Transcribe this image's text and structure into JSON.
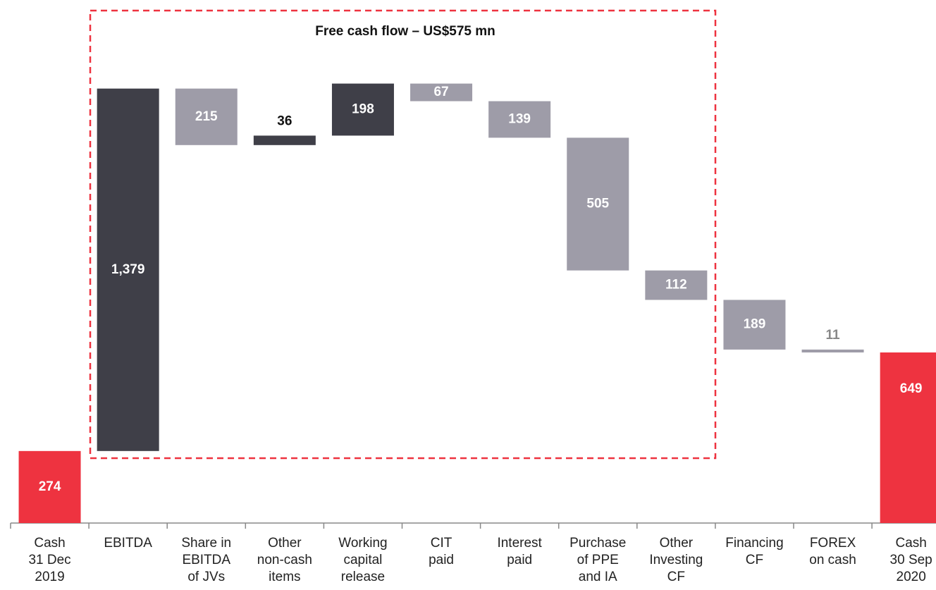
{
  "chart_data": {
    "type": "waterfall",
    "annotation": "Free cash flow – US$575 mn",
    "categories": [
      "Cash\n31 Dec\n2019",
      "EBITDA",
      "Share in\nEBITDA\nof JVs",
      "Other\nnon-cash\nitems",
      "Working\ncapital\nrelease",
      "CIT\npaid",
      "Interest\npaid",
      "Purchase\nof PPE\nand IA",
      "Other\nInvesting\nCF",
      "Financing\nCF",
      "FOREX\non cash",
      "Cash\n30 Sep\n2020"
    ],
    "values": [
      274,
      1379,
      -215,
      36,
      198,
      -67,
      -139,
      -505,
      -112,
      -189,
      -11,
      649
    ],
    "value_labels": [
      "274",
      "1,379",
      "215",
      "36",
      "198",
      "67",
      "139",
      "505",
      "112",
      "189",
      "11",
      "649"
    ],
    "measure": [
      "absolute",
      "relative",
      "relative",
      "relative",
      "relative",
      "relative",
      "relative",
      "relative",
      "relative",
      "relative",
      "relative",
      "absolute"
    ],
    "colors": {
      "total": "#ee3340",
      "increase": "#3f3f48",
      "decrease": "#9e9ca8"
    },
    "ylim": [
      0,
      1990
    ]
  }
}
